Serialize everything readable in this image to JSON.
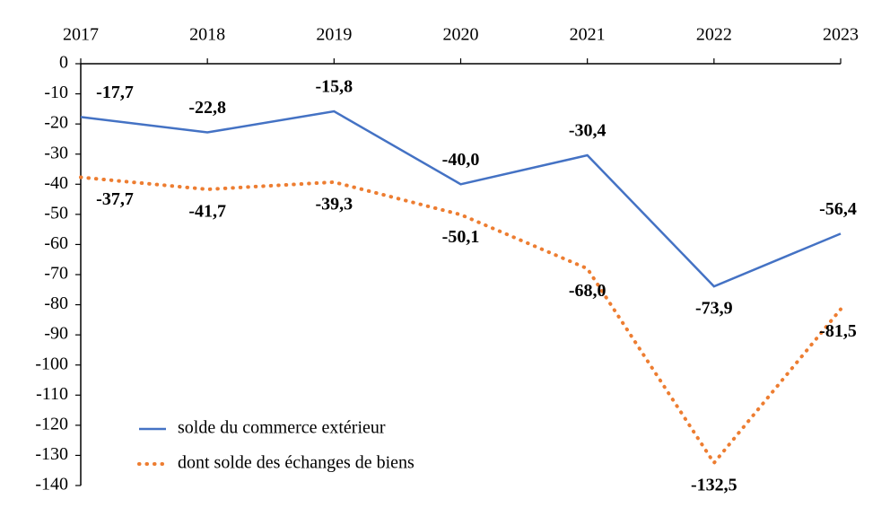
{
  "chart_data": {
    "type": "line",
    "categories": [
      "2017",
      "2018",
      "2019",
      "2020",
      "2021",
      "2022",
      "2023"
    ],
    "series": [
      {
        "name": "solde du commerce extérieur",
        "color": "#4472c4",
        "style": "solid",
        "values": [
          -17.7,
          -22.8,
          -15.8,
          -40.0,
          -30.4,
          -73.9,
          -56.4
        ],
        "value_labels": [
          "-17,7",
          "-22,8",
          "-15,8",
          "-40,0",
          "-30,4",
          "-73,9",
          "-56,4"
        ]
      },
      {
        "name": "dont solde des échanges de biens",
        "color": "#ed7d31",
        "style": "dotted",
        "values": [
          -37.7,
          -41.7,
          -39.3,
          -50.1,
          -68.0,
          -132.5,
          -81.5
        ],
        "value_labels": [
          "-37,7",
          "-41,7",
          "-39,3",
          "-50,1",
          "-68,0",
          "-132,5",
          "-81,5"
        ]
      }
    ],
    "ylim": [
      -140,
      0
    ],
    "yticks": [
      0,
      -10,
      -20,
      -30,
      -40,
      -50,
      -60,
      -70,
      -80,
      -90,
      -100,
      -110,
      -120,
      -130,
      -140
    ],
    "legend": "bottom-left"
  }
}
